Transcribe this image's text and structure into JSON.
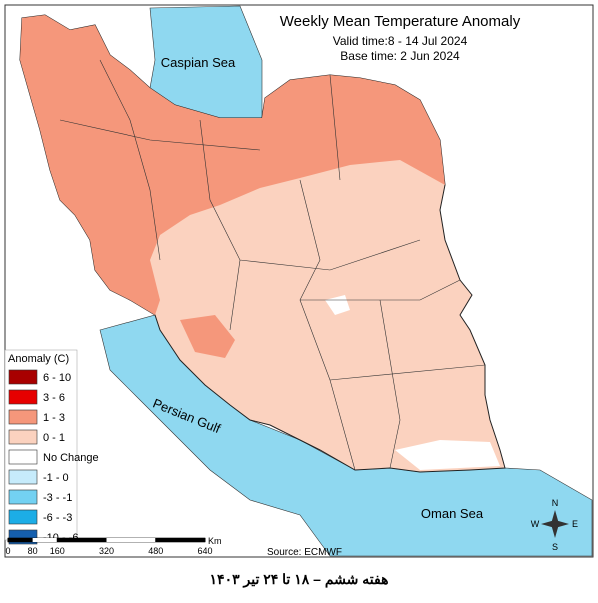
{
  "header": {
    "title": "Weekly Mean Temperature Anomaly",
    "valid_time": "Valid time:8 - 14 Jul 2024",
    "base_time": "Base time: 2 Jun 2024"
  },
  "labels": {
    "caspian": "Caspian Sea",
    "gulf": "Persian Gulf",
    "oman": "Oman Sea"
  },
  "legend": {
    "title": "Anomaly (C)",
    "items": [
      {
        "label": "6 - 10",
        "color": "#a80000"
      },
      {
        "label": "3 - 6",
        "color": "#e60000"
      },
      {
        "label": "1 - 3",
        "color": "#f5977b"
      },
      {
        "label": "0 - 1",
        "color": "#fbd2bf"
      },
      {
        "label": "No Change",
        "color": "#ffffff"
      },
      {
        "label": "-1 - 0",
        "color": "#c6ebfb"
      },
      {
        "label": "-3 - -1",
        "color": "#73d1f2"
      },
      {
        "label": "-6 - -3",
        "color": "#1cade6"
      },
      {
        "label": "-10 - -6",
        "color": "#155fae"
      }
    ]
  },
  "scale_bar": {
    "ticks": [
      0,
      80,
      160,
      320,
      480,
      640
    ],
    "unit": "Km"
  },
  "source": "Source: ECMWF",
  "compass": {
    "n": "N",
    "e": "E",
    "s": "S",
    "w": "W"
  },
  "footer": "هفته ششم – ۱۸ تا ۲۴ تیر ۱۴۰۳"
}
